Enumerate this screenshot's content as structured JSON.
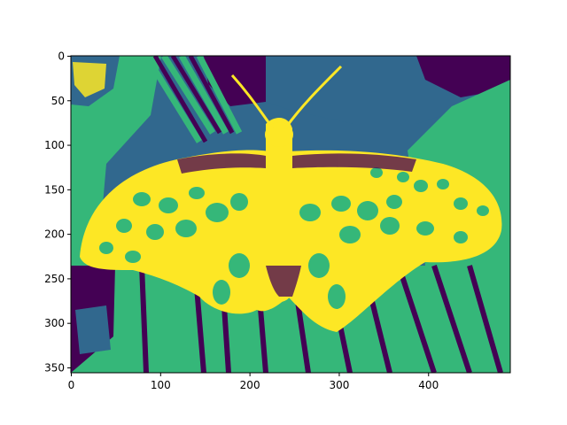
{
  "chart_data": {
    "type": "heatmap",
    "title": "",
    "xlabel": "",
    "ylabel": "",
    "image_shape": [
      356,
      492
    ],
    "xlim": [
      -0.5,
      491.5
    ],
    "ylim": [
      355.5,
      -0.5
    ],
    "y_inverted": true,
    "colormap": "viridis",
    "levels": [
      0,
      1,
      2,
      3
    ],
    "level_colors": [
      "#440154",
      "#31688e",
      "#35b779",
      "#fde725"
    ],
    "x_ticks": [
      0,
      100,
      200,
      300,
      400
    ],
    "x_tick_labels": [
      "0",
      "100",
      "200",
      "300",
      "400"
    ],
    "y_ticks": [
      0,
      50,
      100,
      150,
      200,
      250,
      300,
      350
    ],
    "y_tick_labels": [
      "0",
      "50",
      "100",
      "150",
      "200",
      "250",
      "300",
      "350"
    ],
    "grid": false,
    "legend": "none",
    "image_content": "butterfly-on-leaves"
  }
}
